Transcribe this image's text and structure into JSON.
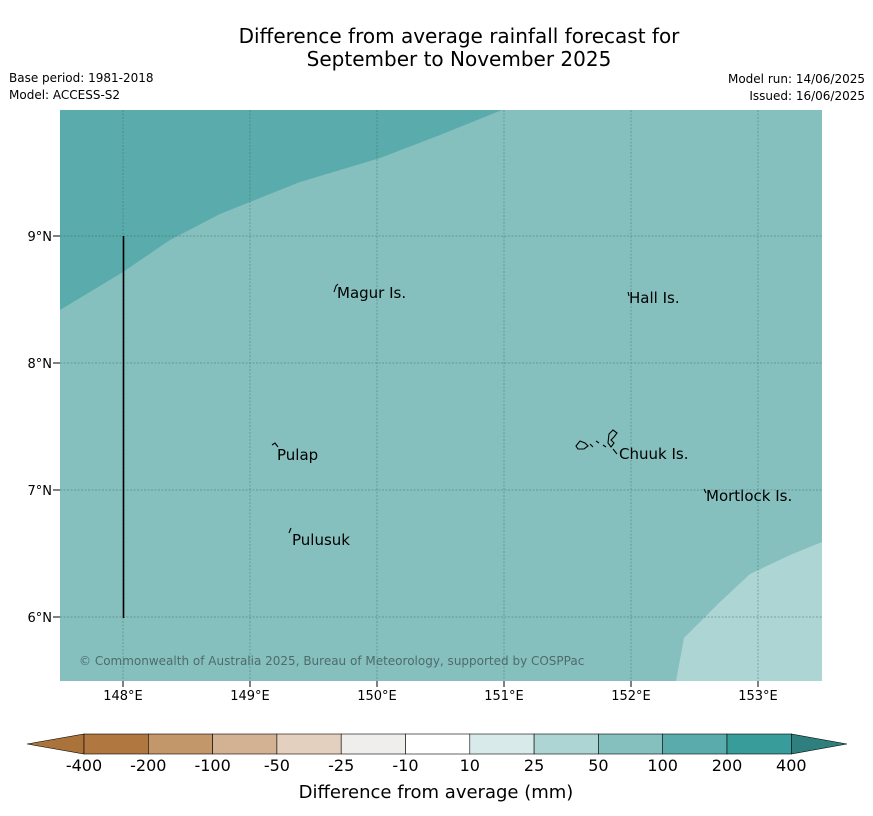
{
  "title": {
    "line1": "Difference from average rainfall forecast for",
    "line2": "September to November 2025"
  },
  "meta": {
    "base_period": "Base period: 1981-2018",
    "model": "Model: ACCESS-S2",
    "model_run": "Model run: 14/06/2025",
    "issued": "Issued: 16/06/2025"
  },
  "axes": {
    "x_ticks": [
      "148°E",
      "149°E",
      "150°E",
      "151°E",
      "152°E",
      "153°E"
    ],
    "y_ticks": [
      "9°N",
      "8°N",
      "7°N",
      "6°N"
    ]
  },
  "places": [
    {
      "name": "Magur Is."
    },
    {
      "name": "Hall Is."
    },
    {
      "name": "Pulap"
    },
    {
      "name": "Chuuk Is."
    },
    {
      "name": "Mortlock Is."
    },
    {
      "name": "Pulusuk"
    }
  ],
  "credit": "© Commonwealth of Australia 2025, Bureau of Meteorology, supported by COSPPac",
  "colorbar": {
    "ticks": [
      "-400",
      "-200",
      "-100",
      "-50",
      "-25",
      "-10",
      "10",
      "25",
      "50",
      "100",
      "200",
      "400"
    ],
    "colors": [
      "#a9733a",
      "#b07840",
      "#c29769",
      "#d2b292",
      "#e4d0bf",
      "#f0eeec",
      "#ffffff",
      "#d8ebea",
      "#acd5d4",
      "#85c0bf",
      "#5aabab",
      "#389c9a",
      "#2e7f7e"
    ],
    "label": "Difference from average (mm)"
  },
  "legend_note": {
    "shaded_categories": [
      "50 to 100",
      "100 to 200",
      "25 to 50"
    ]
  }
}
